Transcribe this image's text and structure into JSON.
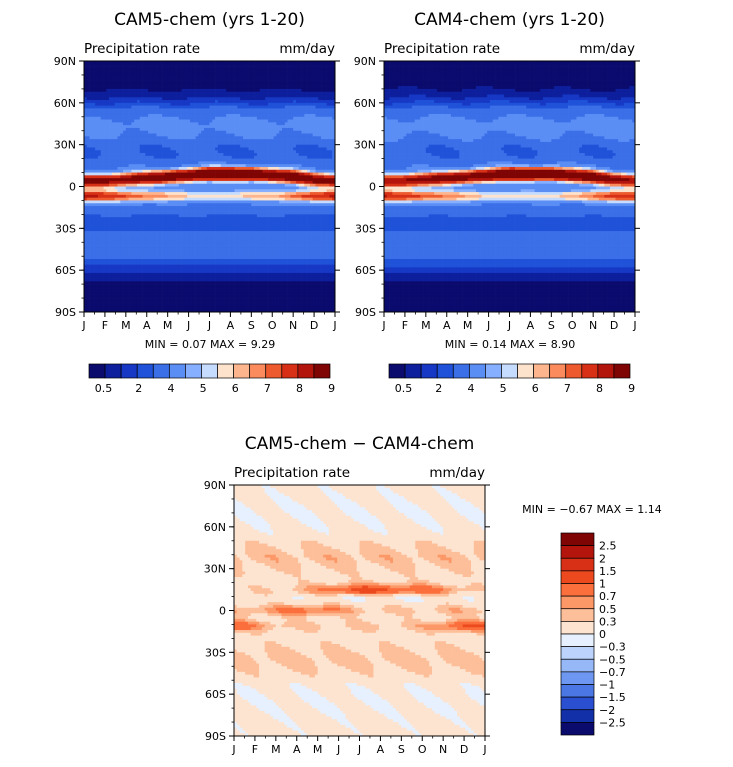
{
  "chart_data": [
    {
      "type": "heatmap",
      "title": "CAM5-chem (yrs 1-20)",
      "left_label": "Precipitation rate",
      "right_label": "mm/day",
      "x_ticks": [
        "J",
        "F",
        "M",
        "A",
        "M",
        "J",
        "J",
        "A",
        "S",
        "O",
        "N",
        "D",
        "J"
      ],
      "y_ticks": [
        "90N",
        "60N",
        "30N",
        "0",
        "30S",
        "60S",
        "90S"
      ],
      "min_text": "MIN =",
      "min_value": "0.07",
      "max_text": "MAX =",
      "max_value": "9.29",
      "stats_line": "MIN =     0.07  MAX =     9.29",
      "colorbar_labels": [
        "0.5",
        "2",
        "4",
        "5",
        "6",
        "7",
        "8",
        "9"
      ],
      "colorbar_colors": [
        "#0b0b6e",
        "#0d1f9c",
        "#1638c4",
        "#1f52d8",
        "#3b6fe8",
        "#5b8ef5",
        "#87afff",
        "#c6dcff",
        "#fde2cc",
        "#fdb58e",
        "#fb8b5c",
        "#ec5a2e",
        "#d73016",
        "#b3150c",
        "#7f0505"
      ],
      "data": {
        "months": [
          1,
          2,
          3,
          4,
          5,
          6,
          7,
          8,
          9,
          10,
          11,
          12,
          13
        ],
        "itcz_peak_lat": [
          4,
          4,
          5,
          6,
          7,
          8,
          9,
          9,
          9,
          8,
          7,
          5,
          4
        ],
        "itcz_peak_mm_day": [
          6.5,
          6.7,
          6.9,
          7.2,
          7.8,
          8.6,
          9.2,
          9.29,
          9.0,
          8.6,
          8.0,
          7.2,
          6.5
        ],
        "sh_band_lat": -7,
        "sh_band_mm_day": [
          6.8,
          6.5,
          5.8,
          5.2,
          4.6,
          4.2,
          4.0,
          4.0,
          4.2,
          4.6,
          5.4,
          6.2,
          6.8
        ],
        "polar_mm_day": 0.3
      }
    },
    {
      "type": "heatmap",
      "title": "CAM4-chem (yrs 1-20)",
      "left_label": "Precipitation rate",
      "right_label": "mm/day",
      "x_ticks": [
        "J",
        "F",
        "M",
        "A",
        "M",
        "J",
        "J",
        "A",
        "S",
        "O",
        "N",
        "D",
        "J"
      ],
      "y_ticks": [
        "90N",
        "60N",
        "30N",
        "0",
        "30S",
        "60S",
        "90S"
      ],
      "stats_line": "MIN =     0.14  MAX =     8.90",
      "colorbar_labels": [
        "0.5",
        "2",
        "4",
        "5",
        "6",
        "7",
        "8",
        "9"
      ],
      "colorbar_colors": [
        "#0b0b6e",
        "#0d1f9c",
        "#1638c4",
        "#1f52d8",
        "#3b6fe8",
        "#5b8ef5",
        "#87afff",
        "#c6dcff",
        "#fde2cc",
        "#fdb58e",
        "#fb8b5c",
        "#ec5a2e",
        "#d73016",
        "#b3150c",
        "#7f0505"
      ],
      "data": {
        "months": [
          1,
          2,
          3,
          4,
          5,
          6,
          7,
          8,
          9,
          10,
          11,
          12,
          13
        ],
        "itcz_peak_lat": [
          4,
          4,
          5,
          6,
          7,
          8,
          9,
          9,
          9,
          8,
          7,
          5,
          4
        ],
        "itcz_peak_mm_day": [
          6.3,
          6.5,
          6.7,
          7.0,
          7.5,
          8.2,
          8.8,
          8.9,
          8.7,
          8.3,
          7.7,
          7.0,
          6.3
        ],
        "sh_band_lat": -7,
        "sh_band_mm_day": [
          6.6,
          6.3,
          5.6,
          5.0,
          4.5,
          4.1,
          3.9,
          3.9,
          4.1,
          4.5,
          5.2,
          6.0,
          6.6
        ],
        "polar_mm_day": 0.35
      }
    },
    {
      "type": "heatmap",
      "title": "CAM5-chem − CAM4-chem",
      "left_label": "Precipitation rate",
      "right_label": "mm/day",
      "x_ticks": [
        "J",
        "F",
        "M",
        "A",
        "M",
        "J",
        "J",
        "A",
        "S",
        "O",
        "N",
        "D",
        "J"
      ],
      "y_ticks": [
        "90N",
        "60N",
        "30N",
        "0",
        "30S",
        "60S",
        "90S"
      ],
      "stats_line": "MIN =   −0.67  MAX =     1.14",
      "colorbar_labels": [
        "2.5",
        "2",
        "1.5",
        "1",
        "0.7",
        "0.5",
        "0.3",
        "0",
        "−0.3",
        "−0.5",
        "−0.7",
        "−1",
        "−1.5",
        "−2",
        "−2.5"
      ],
      "colorbar_colors": [
        "#7f0505",
        "#b3150c",
        "#d73016",
        "#ec4a1e",
        "#fb6f3c",
        "#fc9868",
        "#fdbf9a",
        "#fde4d0",
        "#e6f0ff",
        "#bcd3fb",
        "#96b8f7",
        "#6d97f0",
        "#4a77e3",
        "#2a4fd0",
        "#1230a8",
        "#0b0b6e"
      ],
      "data": {
        "months": [
          1,
          2,
          3,
          4,
          5,
          6,
          7,
          8,
          9,
          10,
          11,
          12,
          13
        ],
        "nh_subtropic_diff": [
          0.1,
          0.1,
          0.2,
          0.3,
          0.5,
          0.8,
          1.14,
          1.0,
          0.9,
          0.8,
          0.6,
          0.3,
          0.1
        ],
        "equator_diff": [
          0.3,
          0.4,
          0.5,
          0.7,
          0.7,
          0.5,
          0.3,
          0.2,
          0.2,
          0.2,
          0.3,
          0.3,
          0.3
        ],
        "sh_edge_diff": [
          0.8,
          0.5,
          0.3,
          0.2,
          0.2,
          0.2,
          0.2,
          0.2,
          0.2,
          0.3,
          0.6,
          0.9,
          0.8
        ],
        "polar_diff": -0.1
      }
    }
  ]
}
